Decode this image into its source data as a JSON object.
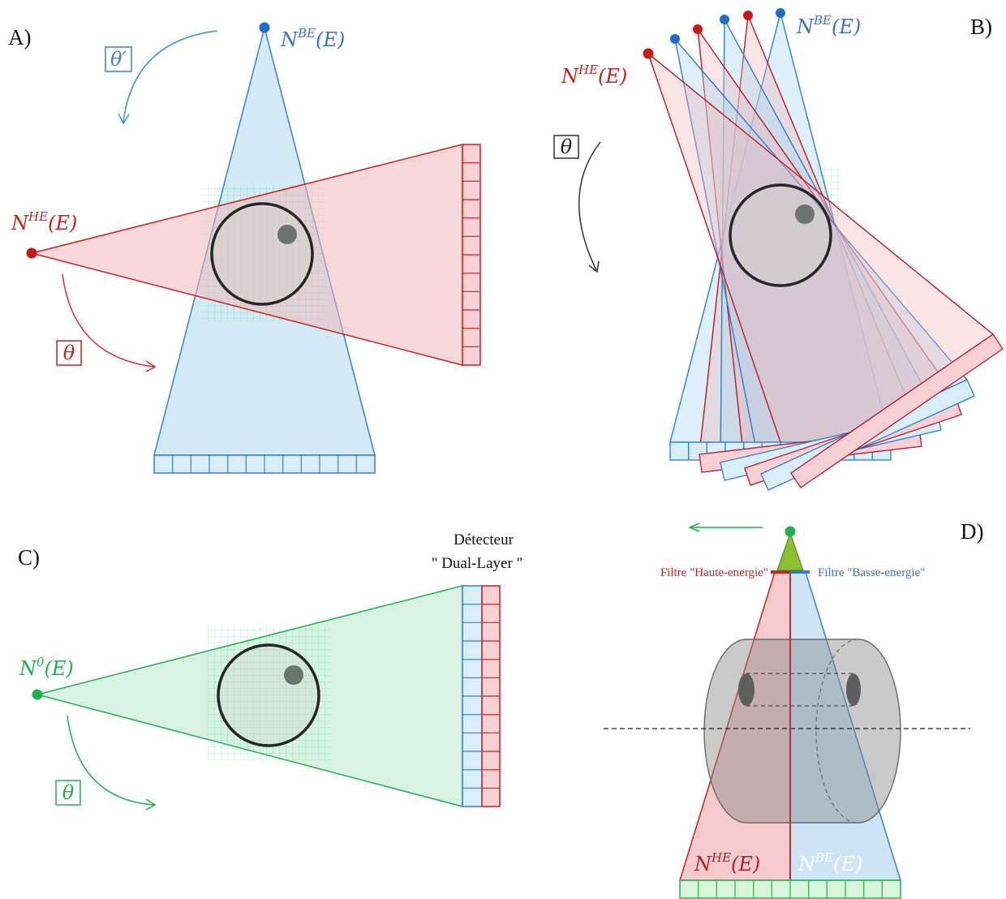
{
  "panels": {
    "a": "A)",
    "b": "B)",
    "c": "C)",
    "d": "D)"
  },
  "labels": {
    "n_be_base": "N",
    "n_be_sup": "BE",
    "n_be_arg": "(E)",
    "n_he_base": "N",
    "n_he_sup": "HE",
    "n_he_arg": "(E)",
    "n0_base": "N",
    "n0_sup": "0",
    "n0_arg": "(E)",
    "theta": "θ",
    "theta_prime": "θ′"
  },
  "detector": {
    "line1": "Détecteur",
    "line2": "\" Dual-Layer \""
  },
  "filters": {
    "high": "Filtre \"Haute-energie\"",
    "low": "Filtre \"Basse-energie\""
  },
  "colors": {
    "blue": "#3a7fd0",
    "blue_fill": "#a8d8f0",
    "red": "#cc2020",
    "red_fill": "#f0b8bc",
    "green": "#20b050",
    "green_fill": "#b8e8cc",
    "object": "#262626"
  }
}
